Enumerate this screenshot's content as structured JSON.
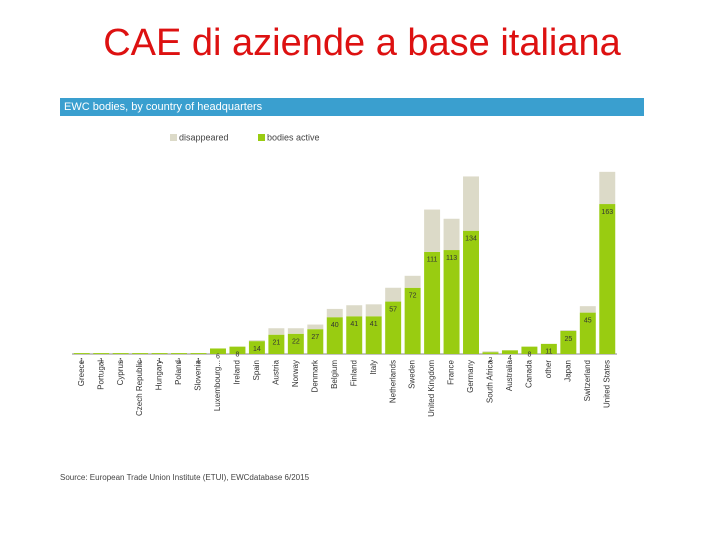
{
  "slide_title": "CAE di aziende a base italiana",
  "chart_data": {
    "type": "stacked_bar",
    "title": "EWC bodies, by country of headquarters",
    "categories": [
      "Greece",
      "Portugal",
      "Cyprus",
      "Czech Republic",
      "Hungary",
      "Poland",
      "Slovenia",
      "Luxembourg...",
      "Ireland",
      "Spain",
      "Austria",
      "Norway",
      "Denmark",
      "Belgium",
      "Finland",
      "Italy",
      "Netherlands",
      "Sweden",
      "United Kingdom",
      "France",
      "Germany",
      "South Africa",
      "Australia",
      "Canada",
      "other",
      "Japan",
      "Switzerland",
      "United States"
    ],
    "series": [
      {
        "name": "bodies active",
        "color": "#99cc11",
        "values": [
          1,
          1,
          1,
          1,
          1,
          1,
          1,
          6,
          8,
          14,
          21,
          22,
          27,
          40,
          41,
          41,
          57,
          72,
          111,
          113,
          134,
          2,
          4,
          8,
          11,
          25,
          45,
          163
        ]
      },
      {
        "name": "disappeared",
        "color": "#dcdac8",
        "values": [
          0,
          0,
          0,
          0,
          0,
          0,
          0,
          0,
          0,
          1,
          7,
          6,
          5,
          9,
          12,
          13,
          15,
          13,
          46,
          34,
          59,
          1,
          0,
          0,
          0,
          1,
          7,
          35
        ]
      }
    ],
    "ylim": [
      0,
      200
    ],
    "source": "Source: European Trade Union Institute (ETUI), EWCdatabase 6/2015"
  }
}
